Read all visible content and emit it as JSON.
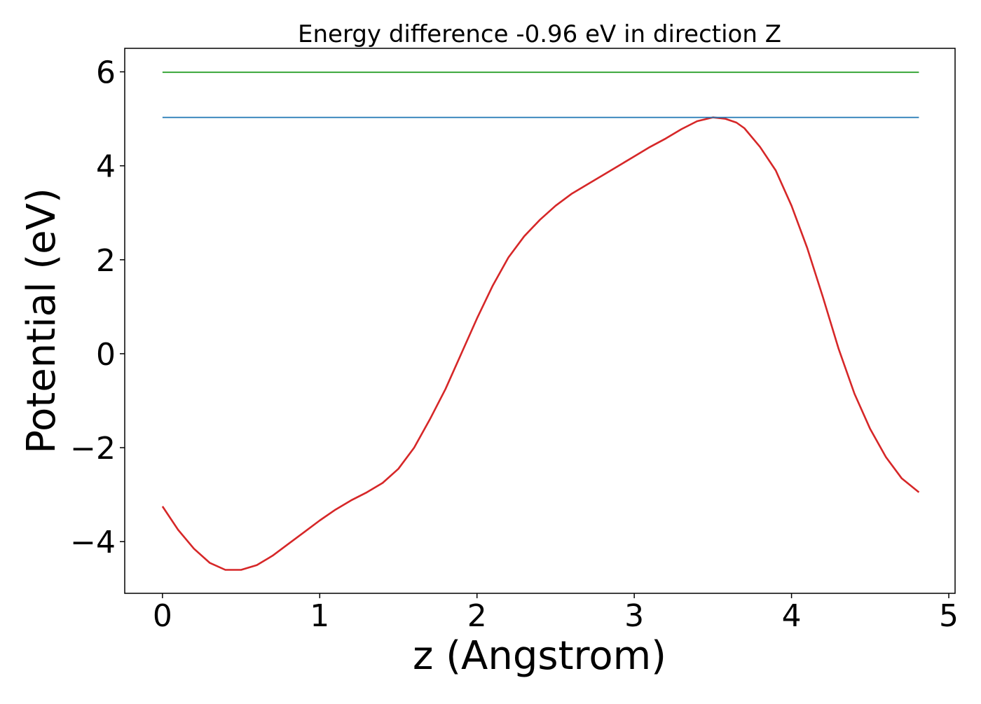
{
  "chart_data": {
    "type": "line",
    "title": "Energy difference -0.96 eV in direction Z",
    "xlabel": "z (Angstrom)",
    "ylabel": "Potential (eV)",
    "xlim": [
      -0.24,
      5.04
    ],
    "ylim": [
      -5.1,
      6.5
    ],
    "xticks": [
      0,
      1,
      2,
      3,
      4,
      5
    ],
    "xtick_labels": [
      "0",
      "1",
      "2",
      "3",
      "4",
      "5"
    ],
    "yticks": [
      -4,
      -2,
      0,
      2,
      4,
      6
    ],
    "ytick_labels": [
      "−4",
      "−2",
      "0",
      "2",
      "4",
      "6"
    ],
    "grid": false,
    "series": [
      {
        "color": "#d62728",
        "x": [
          0,
          0.1,
          0.2,
          0.3,
          0.4,
          0.5,
          0.6,
          0.7,
          0.8,
          0.9,
          1.0,
          1.1,
          1.2,
          1.3,
          1.4,
          1.5,
          1.6,
          1.7,
          1.8,
          1.9,
          2.0,
          2.1,
          2.2,
          2.3,
          2.4,
          2.5,
          2.6,
          2.7,
          2.8,
          2.9,
          3.0,
          3.1,
          3.2,
          3.3,
          3.4,
          3.5,
          3.58,
          3.65,
          3.7,
          3.8,
          3.9,
          4.0,
          4.1,
          4.2,
          4.3,
          4.4,
          4.5,
          4.6,
          4.7,
          4.81
        ],
        "y": [
          -3.25,
          -3.75,
          -4.15,
          -4.45,
          -4.6,
          -4.6,
          -4.5,
          -4.3,
          -4.05,
          -3.8,
          -3.55,
          -3.32,
          -3.12,
          -2.95,
          -2.75,
          -2.45,
          -2.0,
          -1.4,
          -0.75,
          0.0,
          0.75,
          1.45,
          2.05,
          2.5,
          2.85,
          3.15,
          3.4,
          3.6,
          3.8,
          4.0,
          4.2,
          4.4,
          4.58,
          4.78,
          4.95,
          5.03,
          5.0,
          4.92,
          4.8,
          4.4,
          3.9,
          3.15,
          2.25,
          1.2,
          0.1,
          -0.85,
          -1.6,
          -2.2,
          -2.65,
          -2.95
        ]
      },
      {
        "color": "#1f77b4",
        "x": [
          0,
          4.81
        ],
        "y": [
          5.03,
          5.03
        ]
      },
      {
        "color": "#2ca02c",
        "x": [
          0,
          4.81
        ],
        "y": [
          5.99,
          5.99
        ]
      }
    ]
  }
}
